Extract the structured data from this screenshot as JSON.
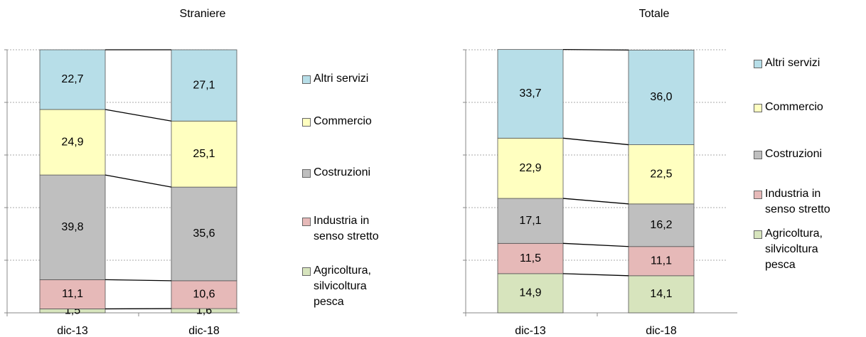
{
  "chart_data": [
    {
      "type": "stacked_bar",
      "title": "Straniere",
      "categories": [
        "dic-13",
        "dic-18"
      ],
      "ylim": [
        0,
        100
      ],
      "yticks": [
        0,
        20,
        40,
        60,
        80,
        100
      ],
      "grid": true,
      "series": [
        {
          "name": "Agricoltura, silvicoltura pesca",
          "color": "#d7e4bd",
          "values": [
            1.5,
            1.6
          ],
          "value_labels": [
            "1,5",
            "1,6"
          ]
        },
        {
          "name": "Industria in senso stretto",
          "color": "#e6b9b8",
          "values": [
            11.1,
            10.6
          ],
          "value_labels": [
            "11,1",
            "10,6"
          ]
        },
        {
          "name": "Costruzioni",
          "color": "#bfbfbf",
          "values": [
            39.8,
            35.6
          ],
          "value_labels": [
            "39,8",
            "35,6"
          ]
        },
        {
          "name": "Commercio",
          "color": "#ffffc0",
          "values": [
            24.9,
            25.1
          ],
          "value_labels": [
            "24,9",
            "25,1"
          ]
        },
        {
          "name": "Altri servizi",
          "color": "#b7dee8",
          "values": [
            22.7,
            27.1
          ],
          "value_labels": [
            "22,7",
            "27,1"
          ]
        }
      ]
    },
    {
      "type": "stacked_bar",
      "title": "Totale",
      "categories": [
        "dic-13",
        "dic-18"
      ],
      "ylim": [
        0,
        100
      ],
      "yticks": [
        0,
        20,
        40,
        60,
        80,
        100
      ],
      "grid": true,
      "series": [
        {
          "name": "Agricoltura, silvicoltura pesca",
          "color": "#d7e4bd",
          "values": [
            14.9,
            14.1
          ],
          "value_labels": [
            "14,9",
            "14,1"
          ]
        },
        {
          "name": "Industria in senso stretto",
          "color": "#e6b9b8",
          "values": [
            11.5,
            11.1
          ],
          "value_labels": [
            "11,5",
            "11,1"
          ]
        },
        {
          "name": "Costruzioni",
          "color": "#bfbfbf",
          "values": [
            17.1,
            16.2
          ],
          "value_labels": [
            "17,1",
            "16,2"
          ]
        },
        {
          "name": "Commercio",
          "color": "#ffffc0",
          "values": [
            22.9,
            22.5
          ],
          "value_labels": [
            "22,9",
            "22,5"
          ]
        },
        {
          "name": "Altri servizi",
          "color": "#b7dee8",
          "values": [
            33.7,
            36.0
          ],
          "value_labels": [
            "33,7",
            "36,0"
          ]
        }
      ]
    }
  ]
}
